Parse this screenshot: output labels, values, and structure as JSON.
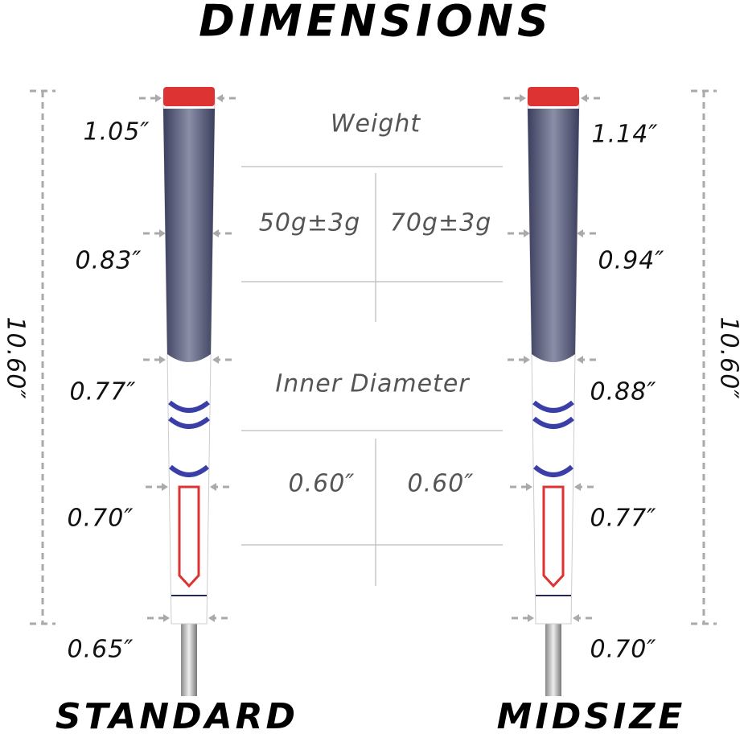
{
  "title": "DIMENSIONS",
  "grips": [
    {
      "name": "STANDARD",
      "length": "10.60″",
      "diameters": [
        "1.05″",
        "0.83″",
        "0.77″",
        "0.70″",
        "0.65″"
      ]
    },
    {
      "name": "MIDSIZE",
      "length": "10.60″",
      "diameters": [
        "1.14″",
        "0.94″",
        "0.88″",
        "0.77″",
        "0.70″"
      ]
    }
  ],
  "table": {
    "weight_header": "Weight",
    "weights": [
      "50g±3g",
      "70g±3g"
    ],
    "inner_header": "Inner Diameter",
    "inner": [
      "0.60″",
      "0.60″"
    ]
  }
}
